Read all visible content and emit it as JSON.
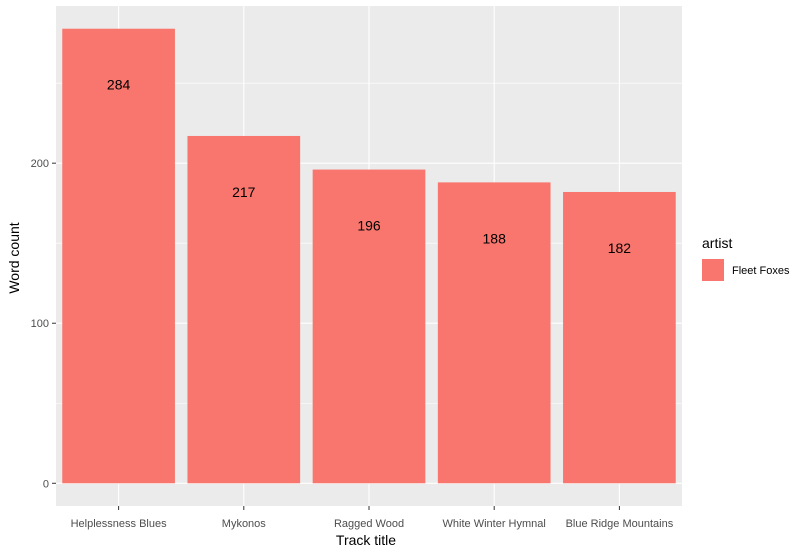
{
  "chart_data": {
    "type": "bar",
    "categories": [
      "Helplessness Blues",
      "Mykonos",
      "Ragged Wood",
      "White Winter Hymnal",
      "Blue Ridge Mountains"
    ],
    "series": [
      {
        "name": "Fleet Foxes",
        "values": [
          284,
          217,
          196,
          188,
          182
        ]
      }
    ],
    "data_labels": [
      "284",
      "217",
      "196",
      "188",
      "182"
    ],
    "xlabel": "Track title",
    "ylabel": "Word count",
    "ylim": [
      -14.2,
      298.2
    ],
    "yticks": [
      0,
      100,
      200
    ],
    "ytick_labels": [
      "0",
      "100",
      "200"
    ],
    "grid": true,
    "legend": {
      "title": "artist",
      "position": "right",
      "entries": [
        "Fleet Foxes"
      ]
    },
    "colors": {
      "bar": "#F8766D",
      "panel": "#EBEBEB",
      "grid": "#FFFFFF"
    }
  }
}
